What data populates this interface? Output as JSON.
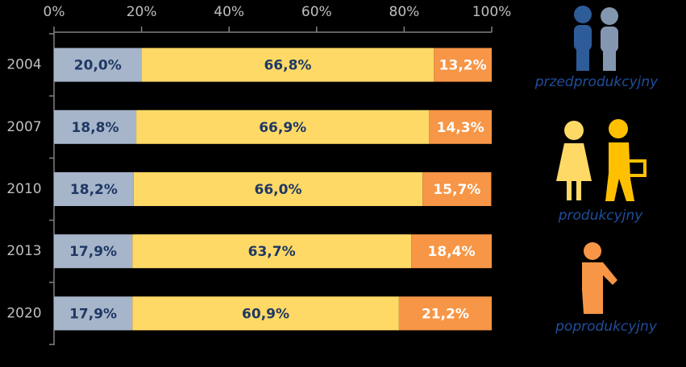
{
  "chart_data": {
    "type": "bar",
    "orientation": "horizontal",
    "stacked": true,
    "categories": [
      "2004",
      "2007",
      "2010",
      "2013",
      "2020"
    ],
    "series": [
      {
        "name": "przedprodukcyjny",
        "color": "#a6b5c9",
        "label_color": "#1f3864",
        "values": [
          20.0,
          18.8,
          18.2,
          17.9,
          17.9
        ],
        "value_labels": [
          "20,0%",
          "18,8%",
          "18,2%",
          "17,9%",
          "17,9%"
        ]
      },
      {
        "name": "produkcyjny",
        "color": "#ffd966",
        "label_color": "#1f3864",
        "values": [
          66.8,
          66.9,
          66.0,
          63.7,
          60.9
        ],
        "value_labels": [
          "66,8%",
          "66,9%",
          "66,0%",
          "63,7%",
          "60,9%"
        ]
      },
      {
        "name": "poprodukcyjny",
        "color": "#f79646",
        "label_color": "#ffffff",
        "values": [
          13.2,
          14.3,
          15.7,
          18.4,
          21.2
        ],
        "value_labels": [
          "13,2%",
          "14,3%",
          "15,7%",
          "18,4%",
          "21,2%"
        ]
      }
    ],
    "xlim": [
      0,
      100
    ],
    "xticks": [
      {
        "value": 0,
        "label": "0%"
      },
      {
        "value": 20,
        "label": "20%"
      },
      {
        "value": 40,
        "label": "40%"
      },
      {
        "value": 60,
        "label": "60%"
      },
      {
        "value": 80,
        "label": "80%"
      },
      {
        "value": 100,
        "label": "100%"
      }
    ],
    "grid": false
  }
}
